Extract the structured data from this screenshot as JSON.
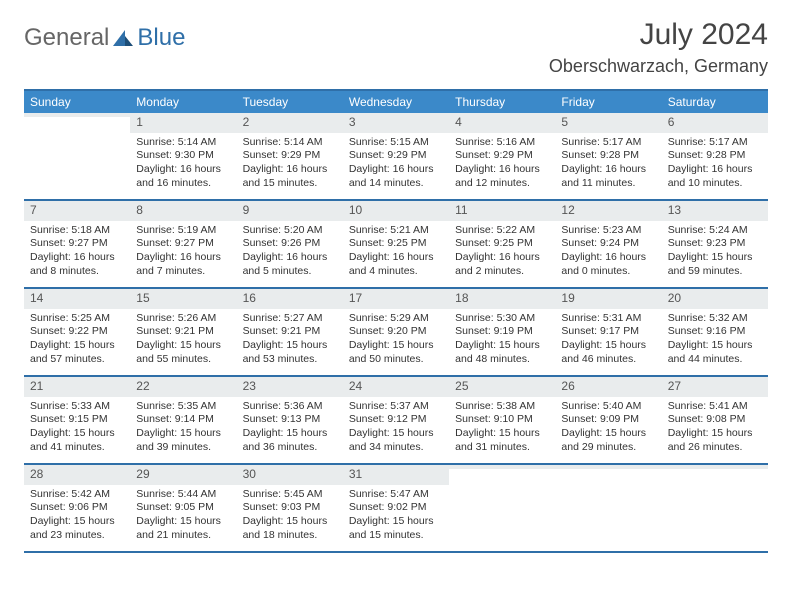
{
  "logo": {
    "general": "General",
    "blue": "Blue"
  },
  "title": "July 2024",
  "location": "Oberschwarzach, Germany",
  "colors": {
    "header_bg": "#3b89c9",
    "border": "#2f6fa8",
    "daynum_bg": "#e9eced",
    "text": "#333333",
    "title_text": "#444444"
  },
  "weekdays": [
    "Sunday",
    "Monday",
    "Tuesday",
    "Wednesday",
    "Thursday",
    "Friday",
    "Saturday"
  ],
  "weeks": [
    [
      {
        "n": "",
        "sr": "",
        "ss": "",
        "dl": ""
      },
      {
        "n": "1",
        "sr": "Sunrise: 5:14 AM",
        "ss": "Sunset: 9:30 PM",
        "dl": "Daylight: 16 hours and 16 minutes."
      },
      {
        "n": "2",
        "sr": "Sunrise: 5:14 AM",
        "ss": "Sunset: 9:29 PM",
        "dl": "Daylight: 16 hours and 15 minutes."
      },
      {
        "n": "3",
        "sr": "Sunrise: 5:15 AM",
        "ss": "Sunset: 9:29 PM",
        "dl": "Daylight: 16 hours and 14 minutes."
      },
      {
        "n": "4",
        "sr": "Sunrise: 5:16 AM",
        "ss": "Sunset: 9:29 PM",
        "dl": "Daylight: 16 hours and 12 minutes."
      },
      {
        "n": "5",
        "sr": "Sunrise: 5:17 AM",
        "ss": "Sunset: 9:28 PM",
        "dl": "Daylight: 16 hours and 11 minutes."
      },
      {
        "n": "6",
        "sr": "Sunrise: 5:17 AM",
        "ss": "Sunset: 9:28 PM",
        "dl": "Daylight: 16 hours and 10 minutes."
      }
    ],
    [
      {
        "n": "7",
        "sr": "Sunrise: 5:18 AM",
        "ss": "Sunset: 9:27 PM",
        "dl": "Daylight: 16 hours and 8 minutes."
      },
      {
        "n": "8",
        "sr": "Sunrise: 5:19 AM",
        "ss": "Sunset: 9:27 PM",
        "dl": "Daylight: 16 hours and 7 minutes."
      },
      {
        "n": "9",
        "sr": "Sunrise: 5:20 AM",
        "ss": "Sunset: 9:26 PM",
        "dl": "Daylight: 16 hours and 5 minutes."
      },
      {
        "n": "10",
        "sr": "Sunrise: 5:21 AM",
        "ss": "Sunset: 9:25 PM",
        "dl": "Daylight: 16 hours and 4 minutes."
      },
      {
        "n": "11",
        "sr": "Sunrise: 5:22 AM",
        "ss": "Sunset: 9:25 PM",
        "dl": "Daylight: 16 hours and 2 minutes."
      },
      {
        "n": "12",
        "sr": "Sunrise: 5:23 AM",
        "ss": "Sunset: 9:24 PM",
        "dl": "Daylight: 16 hours and 0 minutes."
      },
      {
        "n": "13",
        "sr": "Sunrise: 5:24 AM",
        "ss": "Sunset: 9:23 PM",
        "dl": "Daylight: 15 hours and 59 minutes."
      }
    ],
    [
      {
        "n": "14",
        "sr": "Sunrise: 5:25 AM",
        "ss": "Sunset: 9:22 PM",
        "dl": "Daylight: 15 hours and 57 minutes."
      },
      {
        "n": "15",
        "sr": "Sunrise: 5:26 AM",
        "ss": "Sunset: 9:21 PM",
        "dl": "Daylight: 15 hours and 55 minutes."
      },
      {
        "n": "16",
        "sr": "Sunrise: 5:27 AM",
        "ss": "Sunset: 9:21 PM",
        "dl": "Daylight: 15 hours and 53 minutes."
      },
      {
        "n": "17",
        "sr": "Sunrise: 5:29 AM",
        "ss": "Sunset: 9:20 PM",
        "dl": "Daylight: 15 hours and 50 minutes."
      },
      {
        "n": "18",
        "sr": "Sunrise: 5:30 AM",
        "ss": "Sunset: 9:19 PM",
        "dl": "Daylight: 15 hours and 48 minutes."
      },
      {
        "n": "19",
        "sr": "Sunrise: 5:31 AM",
        "ss": "Sunset: 9:17 PM",
        "dl": "Daylight: 15 hours and 46 minutes."
      },
      {
        "n": "20",
        "sr": "Sunrise: 5:32 AM",
        "ss": "Sunset: 9:16 PM",
        "dl": "Daylight: 15 hours and 44 minutes."
      }
    ],
    [
      {
        "n": "21",
        "sr": "Sunrise: 5:33 AM",
        "ss": "Sunset: 9:15 PM",
        "dl": "Daylight: 15 hours and 41 minutes."
      },
      {
        "n": "22",
        "sr": "Sunrise: 5:35 AM",
        "ss": "Sunset: 9:14 PM",
        "dl": "Daylight: 15 hours and 39 minutes."
      },
      {
        "n": "23",
        "sr": "Sunrise: 5:36 AM",
        "ss": "Sunset: 9:13 PM",
        "dl": "Daylight: 15 hours and 36 minutes."
      },
      {
        "n": "24",
        "sr": "Sunrise: 5:37 AM",
        "ss": "Sunset: 9:12 PM",
        "dl": "Daylight: 15 hours and 34 minutes."
      },
      {
        "n": "25",
        "sr": "Sunrise: 5:38 AM",
        "ss": "Sunset: 9:10 PM",
        "dl": "Daylight: 15 hours and 31 minutes."
      },
      {
        "n": "26",
        "sr": "Sunrise: 5:40 AM",
        "ss": "Sunset: 9:09 PM",
        "dl": "Daylight: 15 hours and 29 minutes."
      },
      {
        "n": "27",
        "sr": "Sunrise: 5:41 AM",
        "ss": "Sunset: 9:08 PM",
        "dl": "Daylight: 15 hours and 26 minutes."
      }
    ],
    [
      {
        "n": "28",
        "sr": "Sunrise: 5:42 AM",
        "ss": "Sunset: 9:06 PM",
        "dl": "Daylight: 15 hours and 23 minutes."
      },
      {
        "n": "29",
        "sr": "Sunrise: 5:44 AM",
        "ss": "Sunset: 9:05 PM",
        "dl": "Daylight: 15 hours and 21 minutes."
      },
      {
        "n": "30",
        "sr": "Sunrise: 5:45 AM",
        "ss": "Sunset: 9:03 PM",
        "dl": "Daylight: 15 hours and 18 minutes."
      },
      {
        "n": "31",
        "sr": "Sunrise: 5:47 AM",
        "ss": "Sunset: 9:02 PM",
        "dl": "Daylight: 15 hours and 15 minutes."
      },
      {
        "n": "",
        "sr": "",
        "ss": "",
        "dl": ""
      },
      {
        "n": "",
        "sr": "",
        "ss": "",
        "dl": ""
      },
      {
        "n": "",
        "sr": "",
        "ss": "",
        "dl": ""
      }
    ]
  ]
}
